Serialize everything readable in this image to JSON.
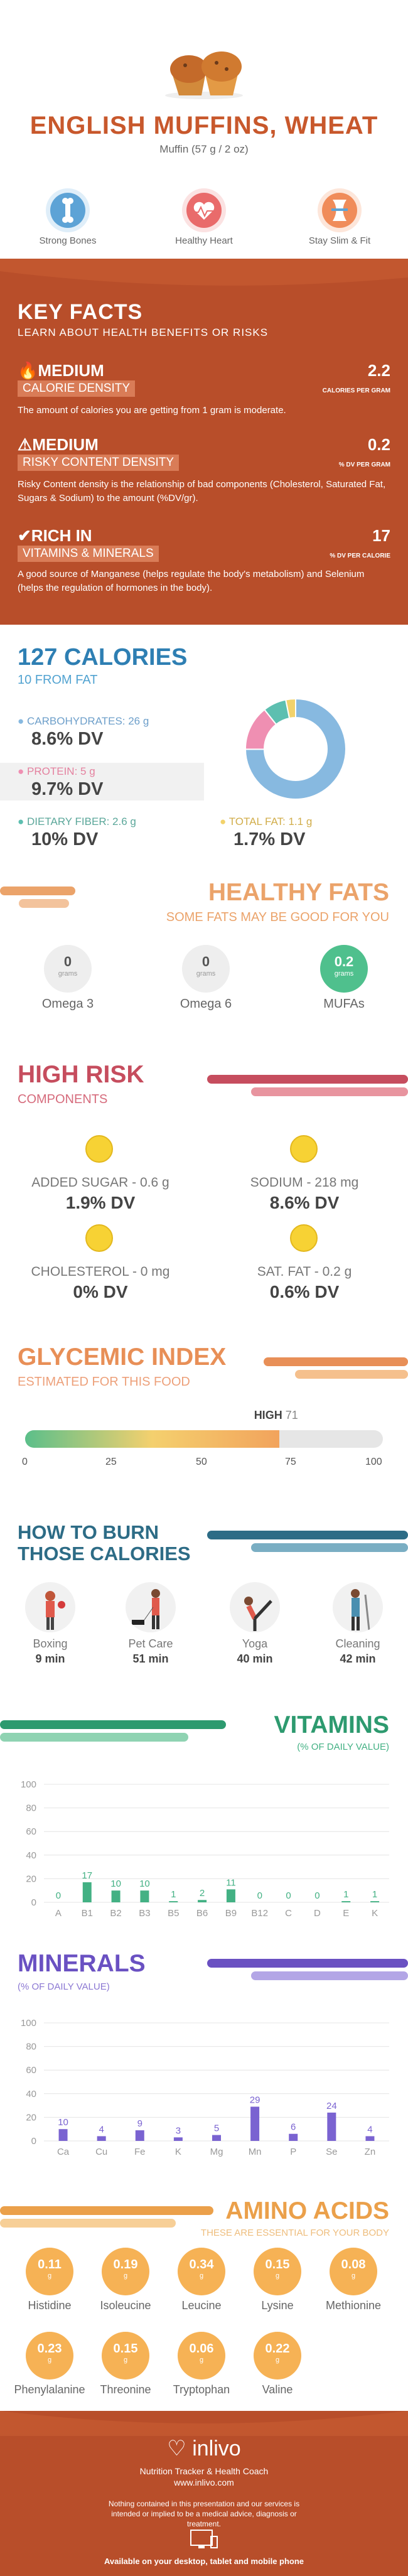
{
  "header": {
    "title": "ENGLISH MUFFINS, WHEAT",
    "serving": "Muffin (57 g / 2 oz)",
    "benefits": [
      {
        "label": "Strong Bones",
        "icon": "bone-icon",
        "color": "#5da3d6"
      },
      {
        "label": "Healthy Heart",
        "icon": "heart-icon",
        "color": "#e96b6b"
      },
      {
        "label": "Stay Slim & Fit",
        "icon": "waist-icon",
        "color": "#f08c5a"
      }
    ]
  },
  "key_facts": {
    "title": "KEY FACTS",
    "subtitle": "LEARN ABOUT HEALTH BENEFITS OR RISKS",
    "items": [
      {
        "level": "MEDIUM",
        "name": "CALORIE DENSITY",
        "value": "2.2",
        "unit": "CALORIES PER GRAM",
        "description": "The amount of calories you are getting from 1 gram is moderate."
      },
      {
        "level": "MEDIUM",
        "name": "RISKY CONTENT DENSITY",
        "value": "0.2",
        "unit": "% DV PER GRAM",
        "description": "Risky Content density is the relationship of bad components (Cholesterol, Saturated Fat, Sugars & Sodium) to the amount (%DV/gr)."
      },
      {
        "level": "RICH IN",
        "name": "VITAMINS & MINERALS",
        "value": "17",
        "unit": "% DV PER CALORIE",
        "description": "A good source of Manganese (helps regulate the body's metabolism) and Selenium (helps the regulation of hormones in the body)."
      }
    ]
  },
  "calories": {
    "title": "127 CALORIES",
    "subtitle": "10 FROM FAT",
    "nutrients": [
      {
        "label": "CARBOHYDRATES: 26 g",
        "dv": "8.6% DV",
        "color": "#87b9e0"
      },
      {
        "label": "PROTEIN: 5 g",
        "dv": "9.7% DV",
        "color": "#ef8fb2"
      },
      {
        "label": "DIETARY FIBER: 2.6 g",
        "dv": "10% DV",
        "color": "#5dbfb0"
      },
      {
        "label": "TOTAL FAT: 1.1 g",
        "dv": "1.7% DV",
        "color": "#f2d26b"
      }
    ],
    "donut": [
      {
        "name": "carbohydrates",
        "value": 26,
        "color": "#87b9e0"
      },
      {
        "name": "protein",
        "value": 5,
        "color": "#ef8fb2"
      },
      {
        "name": "fiber",
        "value": 2.6,
        "color": "#5dbfb0"
      },
      {
        "name": "fat",
        "value": 1.1,
        "color": "#f2d26b"
      }
    ]
  },
  "healthy_fats": {
    "title": "HEALTHY FATS",
    "subtitle": "SOME FATS MAY BE GOOD FOR YOU",
    "items": [
      {
        "label": "Omega 3",
        "value": "0",
        "unit": "grams"
      },
      {
        "label": "Omega 6",
        "value": "0",
        "unit": "grams"
      },
      {
        "label": "MUFAs",
        "value": "0.2",
        "unit": "grams"
      }
    ]
  },
  "high_risk": {
    "title": "HIGH RISK",
    "subtitle": "COMPONENTS",
    "items": [
      {
        "label": "ADDED SUGAR - 0.6 g",
        "dv": "1.9% DV"
      },
      {
        "label": "SODIUM - 218 mg",
        "dv": "8.6% DV"
      },
      {
        "label": "CHOLESTEROL - 0 mg",
        "dv": "0% DV"
      },
      {
        "label": "SAT. FAT - 0.2 g",
        "dv": "0.6% DV"
      }
    ]
  },
  "glycemic": {
    "title": "GLYCEMIC INDEX",
    "subtitle": "ESTIMATED FOR THIS FOOD",
    "level": "HIGH",
    "value": "71",
    "value_num": 71,
    "ticks": [
      "0",
      "25",
      "50",
      "75",
      "100"
    ]
  },
  "burn": {
    "title_line1": "HOW TO BURN",
    "title_line2": "THOSE CALORIES",
    "activities": [
      {
        "label": "Boxing",
        "time": "9 min",
        "icon": "boxing-icon"
      },
      {
        "label": "Pet Care",
        "time": "51 min",
        "icon": "dog-walking-icon"
      },
      {
        "label": "Yoga",
        "time": "40 min",
        "icon": "yoga-icon"
      },
      {
        "label": "Cleaning",
        "time": "42 min",
        "icon": "cleaning-icon"
      }
    ]
  },
  "vitamins": {
    "title": "VITAMINS",
    "subtitle": "(% OF DAILY VALUE)",
    "y_ticks": [
      "100",
      "80",
      "60",
      "40",
      "20",
      "0"
    ],
    "chart_data": {
      "type": "bar",
      "categories": [
        "A",
        "B1",
        "B2",
        "B3",
        "B5",
        "B6",
        "B9",
        "B12",
        "C",
        "D",
        "E",
        "K"
      ],
      "values": [
        0,
        17,
        10,
        10,
        1,
        2,
        11,
        0,
        0,
        0,
        1,
        1
      ],
      "ylim": [
        0,
        100
      ],
      "color": "#43b184"
    }
  },
  "minerals": {
    "title": "MINERALS",
    "subtitle": "(% OF DAILY VALUE)",
    "y_ticks": [
      "100",
      "80",
      "60",
      "40",
      "20",
      "0"
    ],
    "chart_data": {
      "type": "bar",
      "categories": [
        "Ca",
        "Cu",
        "Fe",
        "K",
        "Mg",
        "Mn",
        "P",
        "Se",
        "Zn"
      ],
      "values": [
        10,
        4,
        9,
        3,
        5,
        29,
        6,
        24,
        4
      ],
      "ylim": [
        0,
        100
      ],
      "color": "#7a63d1"
    }
  },
  "amino_acids": {
    "title": "AMINO ACIDS",
    "subtitle": "THESE ARE ESSENTIAL FOR YOUR BODY",
    "unit": "g",
    "items": [
      {
        "label": "Histidine",
        "value": "0.11"
      },
      {
        "label": "Isoleucine",
        "value": "0.19"
      },
      {
        "label": "Leucine",
        "value": "0.34"
      },
      {
        "label": "Lysine",
        "value": "0.15"
      },
      {
        "label": "Methionine",
        "value": "0.08"
      },
      {
        "label": "Phenylalanine",
        "value": "0.23"
      },
      {
        "label": "Threonine",
        "value": "0.15"
      },
      {
        "label": "Tryptophan",
        "value": "0.06"
      },
      {
        "label": "Valine",
        "value": "0.22"
      }
    ]
  },
  "footer": {
    "brand": "inlivo",
    "tagline": "Nutrition Tracker & Health Coach",
    "url": "www.inlivo.com",
    "disclaimer": "Nothing contained in this presentation and our services is intended or implied to be a medical advice, diagnosis or treatment.",
    "available": "Available on your desktop, tablet and mobile phone"
  }
}
